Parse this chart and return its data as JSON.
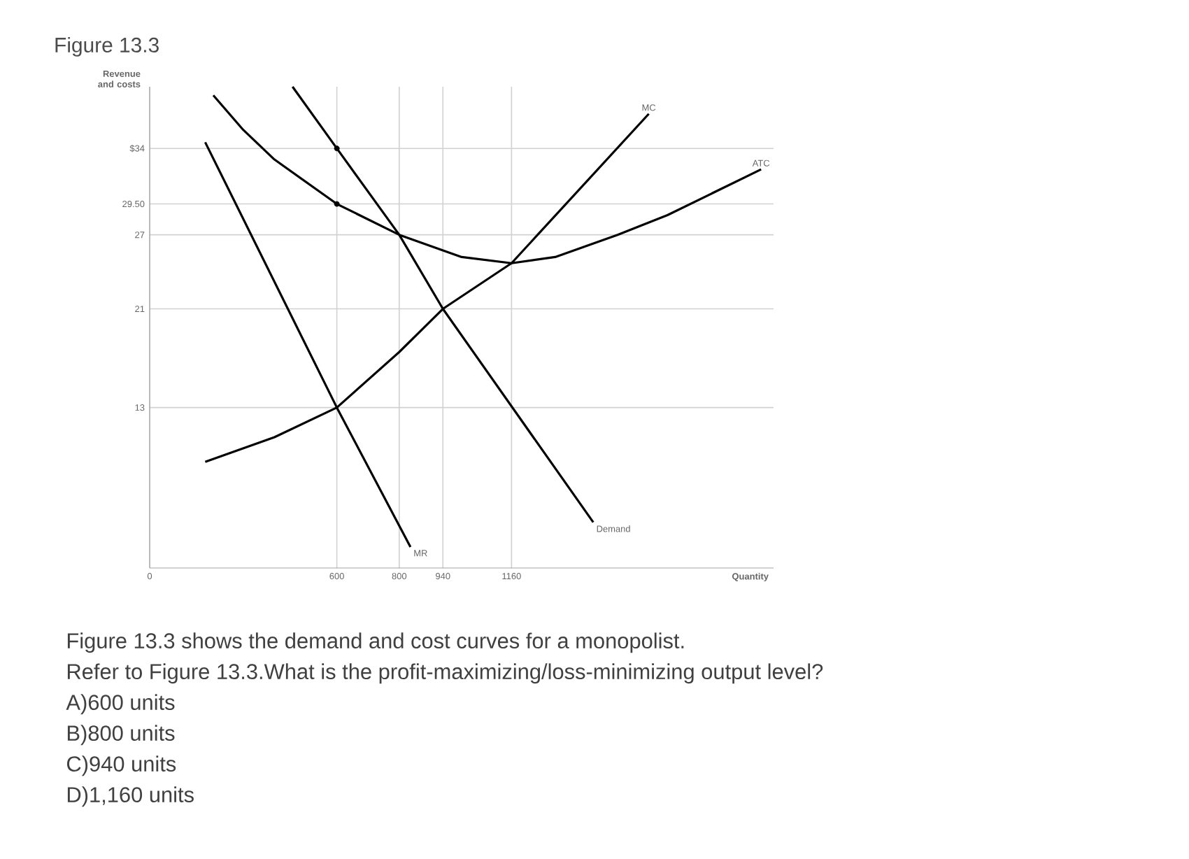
{
  "chart_data": {
    "type": "line",
    "title": "Figure 13.3",
    "ylabel": "Revenue and costs",
    "xlabel": "Quantity",
    "xlim": [
      0,
      2000
    ],
    "ylim": [
      0,
      39
    ],
    "xticks": [
      0,
      600,
      800,
      940,
      1160
    ],
    "yticks": [
      {
        "value": 13,
        "label": "13"
      },
      21,
      27,
      {
        "value": 29.5,
        "label": "29.50"
      },
      {
        "value": 34,
        "label": "$34"
      }
    ],
    "grid": true,
    "series": [
      {
        "name": "MC",
        "color": "#000000",
        "x": [
          178,
          400,
          600,
          800,
          940,
          1160,
          1600
        ],
        "values": [
          8.6,
          10.6,
          13,
          17.5,
          21,
          24.7,
          36.8
        ]
      },
      {
        "name": "ATC",
        "color": "#000000",
        "x": [
          204,
          300,
          400,
          600,
          800,
          1000,
          1160,
          1300,
          1500,
          1660,
          1960
        ],
        "values": [
          38.3,
          35.5,
          33.1,
          29.5,
          27,
          25.2,
          24.7,
          25.2,
          27,
          28.6,
          32.3
        ]
      },
      {
        "name": "Demand",
        "color": "#000000",
        "x": [
          458,
          600,
          800,
          940,
          1422
        ],
        "values": [
          39,
          34,
          27,
          21,
          3.7
        ]
      },
      {
        "name": "MR",
        "color": "#000000",
        "x": [
          178,
          600,
          836
        ],
        "values": [
          34.5,
          13,
          1.7
        ]
      },
      {
        "type": "scatter",
        "marker": "circle",
        "color": "#000000",
        "x": [
          600,
          600
        ],
        "values": [
          34,
          29.5
        ]
      }
    ],
    "annotations": [
      "Figure 13.3 shows the demand and cost curves for a monopolist.",
      "Refer to Figure 13.3.What is the profit-maximizing/loss-minimizing output level?",
      "A)600 units",
      "B)800 units",
      "C)940 units",
      "D)1,160 units"
    ]
  }
}
